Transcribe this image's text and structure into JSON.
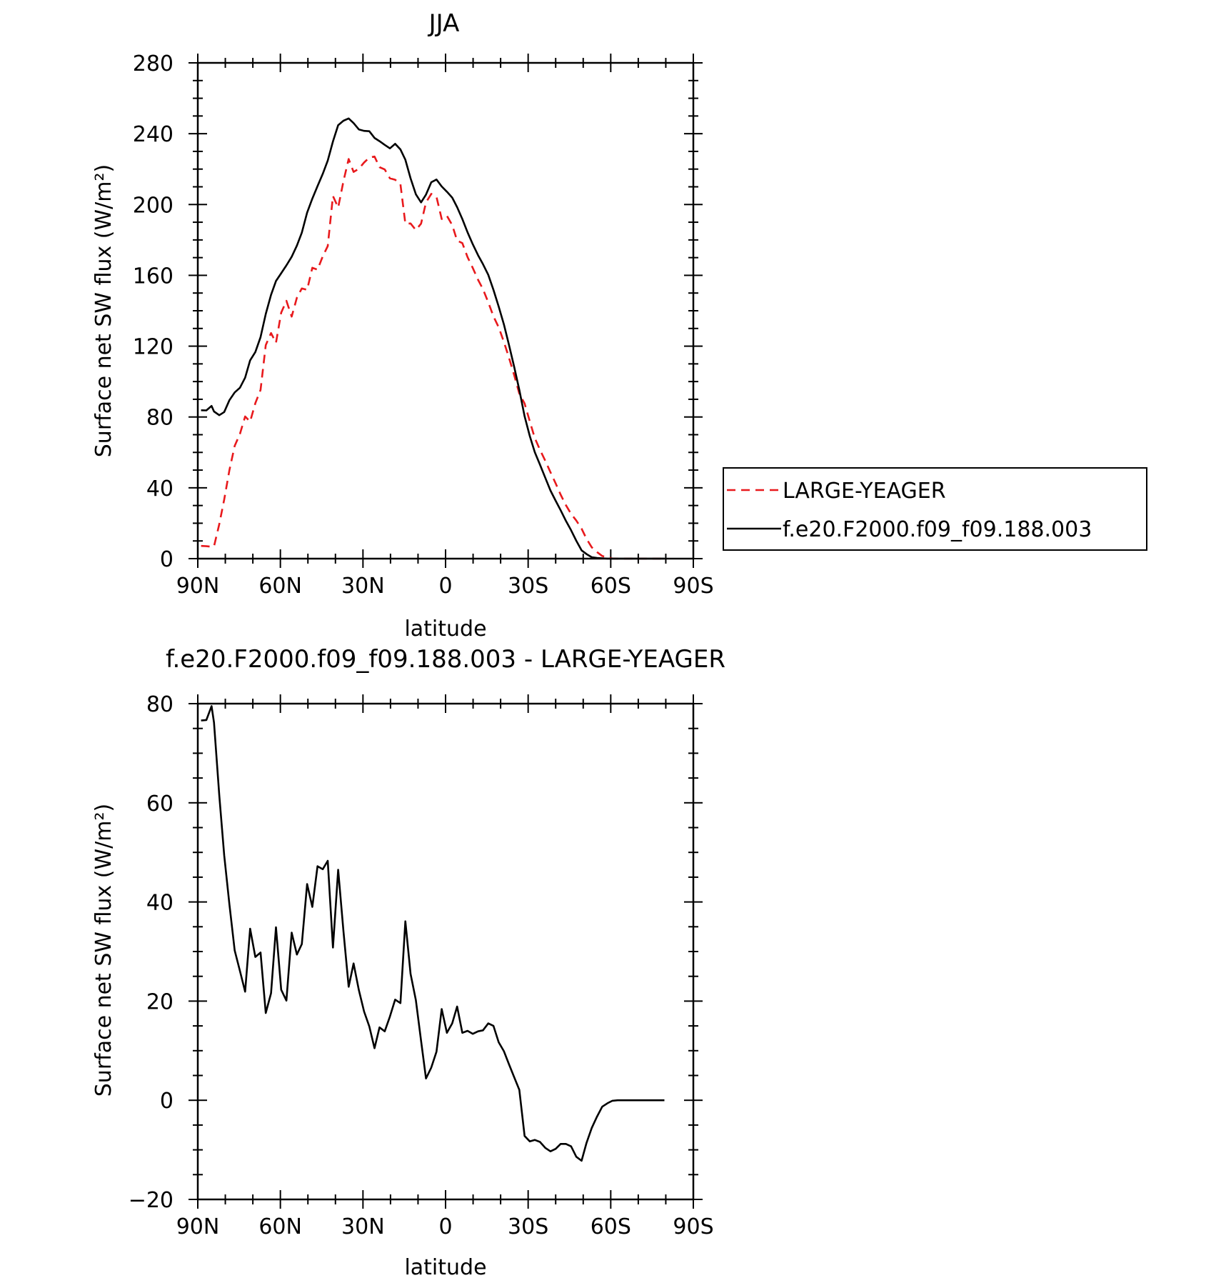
{
  "chart_data": [
    {
      "type": "line",
      "title": "JJA",
      "xlabel": "latitude",
      "ylabel": "Surface net SW flux (W/m²)",
      "xlim": [
        90,
        -90
      ],
      "ylim": [
        0,
        280
      ],
      "xticks": [
        90,
        60,
        30,
        0,
        -30,
        -60,
        -90
      ],
      "xtick_labels": [
        "90N",
        "60N",
        "30N",
        "0",
        "30S",
        "60S",
        "90S"
      ],
      "yticks": [
        0,
        40,
        80,
        120,
        160,
        200,
        240,
        280
      ],
      "ytick_labels": [
        "0",
        "40",
        "80",
        "120",
        "160",
        "200",
        "240",
        "280"
      ],
      "legend_position": "right",
      "series": [
        {
          "name": "LARGE-YEAGER",
          "color": "#e8191c",
          "dash": "dashed",
          "x": [
            88.8,
            86.9,
            85,
            84.1,
            82.2,
            80.4,
            78.5,
            76.6,
            74.7,
            72.8,
            71,
            69.1,
            67.2,
            65.3,
            63.4,
            61.6,
            59.7,
            57.8,
            55.9,
            54,
            52.2,
            50.3,
            48.4,
            46.5,
            44.6,
            42.8,
            40.9,
            39,
            37.1,
            35.2,
            33.4,
            31.5,
            29.6,
            27.7,
            25.8,
            24,
            22.1,
            20.2,
            18.3,
            16.4,
            14.6,
            12.7,
            10.8,
            8.9,
            7.1,
            5.2,
            3.3,
            1.4,
            -0.5,
            -2.4,
            -4.2,
            -6.1,
            -8,
            -9.9,
            -11.8,
            -13.6,
            -15.5,
            -17.4,
            -19.3,
            -21.2,
            -23,
            -24.9,
            -26.8,
            -28.7,
            -30.6,
            -32.4,
            -34.3,
            -36.2,
            -38.1,
            -40,
            -41.8,
            -43.7,
            -45.6,
            -47.5,
            -49.4,
            -51.2,
            -53.1,
            -55,
            -56.9,
            -58.8,
            -60.6,
            -62.5,
            -64.4,
            -66.3,
            -68.2,
            -70,
            -71.9,
            -73.8,
            -75.7,
            -77.6,
            -79.5
          ],
          "y": [
            7.2,
            7,
            6.7,
            6.9,
            19.5,
            33.4,
            50,
            63.7,
            70.4,
            80.3,
            77.4,
            87.8,
            95.3,
            120.6,
            127.4,
            121.9,
            138.9,
            145.6,
            136.7,
            147.4,
            152.6,
            151.8,
            164.3,
            163.2,
            170.7,
            176.5,
            204.8,
            198.3,
            213.2,
            225.7,
            218.4,
            220.2,
            223.7,
            226.5,
            227.1,
            221.1,
            219.8,
            214.8,
            214,
            211.5,
            189.2,
            189.3,
            185.6,
            189.2,
            201.2,
            206,
            204.3,
            191.8,
            193.6,
            188.4,
            179.6,
            178.2,
            170.3,
            164.1,
            157.5,
            152.2,
            144.8,
            136.8,
            130.7,
            122.4,
            113.6,
            103.8,
            93.2,
            87.6,
            77.5,
            68.2,
            61.5,
            55.3,
            48.8,
            42.5,
            36.1,
            30.2,
            25.3,
            21.5,
            16.9,
            11.2,
            6.4,
            3.7,
            1.5,
            0.6,
            0.1,
            0,
            0,
            0,
            0,
            0,
            0,
            0,
            0,
            0,
            0
          ]
        },
        {
          "name": "f.e20.F2000.f09_f09.188.003",
          "color": "#000000",
          "dash": "solid",
          "x": [
            88.8,
            86.9,
            85,
            84.1,
            82.2,
            80.4,
            78.5,
            76.6,
            74.7,
            72.8,
            71,
            69.1,
            67.2,
            65.3,
            63.4,
            61.6,
            59.7,
            57.8,
            55.9,
            54,
            52.2,
            50.3,
            48.4,
            46.5,
            44.6,
            42.8,
            40.9,
            39,
            37.1,
            35.2,
            33.4,
            31.5,
            29.6,
            27.7,
            25.8,
            24,
            22.1,
            20.2,
            18.3,
            16.4,
            14.6,
            12.7,
            10.8,
            8.9,
            7.1,
            5.2,
            3.3,
            1.4,
            -0.5,
            -2.4,
            -4.2,
            -6.1,
            -8,
            -9.9,
            -11.8,
            -13.6,
            -15.5,
            -17.4,
            -19.3,
            -21.2,
            -23,
            -24.9,
            -26.8,
            -28.7,
            -30.6,
            -32.4,
            -34.3,
            -36.2,
            -38.1,
            -40,
            -41.8,
            -43.7,
            -45.6,
            -47.5,
            -49.4,
            -51.2,
            -53.1,
            -55,
            -56.9,
            -58.8,
            -60.6,
            -62.5,
            -64.4,
            -66.3,
            -68.2,
            -70,
            -71.9,
            -73.8,
            -75.7,
            -77.6,
            -79.5
          ],
          "y": [
            83.8,
            83.7,
            86.2,
            83.1,
            81,
            82.8,
            89.5,
            93.9,
            96.5,
            102.2,
            112,
            116.7,
            125.1,
            138.2,
            149,
            156.8,
            161.2,
            165.6,
            170.5,
            176.8,
            184.1,
            195.4,
            203.3,
            210.4,
            217.3,
            224.8,
            235.6,
            244.8,
            247.3,
            248.6,
            246,
            242.4,
            241.6,
            241.4,
            237.6,
            235.8,
            233.7,
            231.7,
            234.3,
            231.1,
            225.3,
            214.8,
            205.8,
            201.2,
            205.6,
            212.6,
            214.1,
            210.2,
            207.2,
            203.9,
            198.5,
            191.8,
            184.3,
            177.5,
            171.4,
            166.3,
            160.3,
            151.8,
            142.4,
            132.3,
            120.9,
            108.5,
            95.3,
            80.4,
            69.2,
            60.2,
            53.1,
            45.7,
            38.5,
            32.7,
            27.3,
            21.4,
            16,
            10.1,
            4.7,
            2.6,
            0.8,
            0.4,
            0.2,
            0,
            0,
            0,
            0,
            0,
            0,
            0,
            0,
            0,
            0,
            0,
            0
          ]
        }
      ]
    },
    {
      "type": "line",
      "title": "f.e20.F2000.f09_f09.188.003 - LARGE-YEAGER",
      "xlabel": "latitude",
      "ylabel": "Surface net SW flux (W/m²)",
      "xlim": [
        90,
        -90
      ],
      "ylim": [
        -20,
        80
      ],
      "xticks": [
        90,
        60,
        30,
        0,
        -30,
        -60,
        -90
      ],
      "xtick_labels": [
        "90N",
        "60N",
        "30N",
        "0",
        "30S",
        "60S",
        "90S"
      ],
      "yticks": [
        -20,
        0,
        20,
        40,
        60,
        80
      ],
      "ytick_labels": [
        "−20",
        "0",
        "20",
        "40",
        "60",
        "80"
      ],
      "series": [
        {
          "color": "#000000",
          "dash": "solid",
          "x": [
            88.8,
            86.9,
            85,
            84.1,
            82.2,
            80.4,
            78.5,
            76.6,
            74.7,
            72.8,
            71,
            69.1,
            67.2,
            65.3,
            63.4,
            61.6,
            59.7,
            57.8,
            55.9,
            54,
            52.2,
            50.3,
            48.4,
            46.5,
            44.6,
            42.8,
            40.9,
            39,
            37.1,
            35.2,
            33.4,
            31.5,
            29.6,
            27.7,
            25.8,
            24,
            22.1,
            20.2,
            18.3,
            16.4,
            14.6,
            12.7,
            10.8,
            8.9,
            7.1,
            5.2,
            3.3,
            1.4,
            -0.5,
            -2.4,
            -4.2,
            -6.1,
            -8,
            -9.9,
            -11.8,
            -13.6,
            -15.5,
            -17.4,
            -19.3,
            -21.2,
            -23,
            -24.9,
            -26.8,
            -28.7,
            -30.6,
            -32.4,
            -34.3,
            -36.2,
            -38.1,
            -40,
            -41.8,
            -43.7,
            -45.6,
            -47.5,
            -49.4,
            -51.2,
            -53.1,
            -55,
            -56.9,
            -58.8,
            -60.6,
            -62.5,
            -64.4,
            -66.3,
            -68.2,
            -70,
            -71.9,
            -73.8,
            -75.7,
            -77.6,
            -79.5
          ],
          "y": [
            76.6,
            76.7,
            79.5,
            76.2,
            61.5,
            49.4,
            39.5,
            30.2,
            26.1,
            21.9,
            34.6,
            28.9,
            29.8,
            17.6,
            21.6,
            34.9,
            22.3,
            20.1,
            33.8,
            29.4,
            31.5,
            43.6,
            39,
            47.2,
            46.6,
            48.3,
            30.8,
            46.5,
            34.1,
            22.9,
            27.6,
            22.2,
            17.9,
            14.9,
            10.5,
            14.7,
            13.9,
            16.9,
            20.3,
            19.6,
            36.1,
            25.5,
            20.2,
            12,
            4.4,
            6.6,
            9.8,
            18.4,
            13.6,
            15.5,
            18.9,
            13.6,
            14,
            13.4,
            13.9,
            14.1,
            15.5,
            15,
            11.7,
            9.9,
            7.3,
            4.7,
            2.1,
            -7.2,
            -8.3,
            -8,
            -8.4,
            -9.6,
            -10.3,
            -9.8,
            -8.8,
            -8.8,
            -9.3,
            -11.4,
            -12.2,
            -8.6,
            -5.6,
            -3.3,
            -1.3,
            -0.6,
            -0.1,
            0,
            0,
            0,
            0,
            0,
            0,
            0,
            0,
            0,
            0
          ]
        }
      ]
    }
  ]
}
